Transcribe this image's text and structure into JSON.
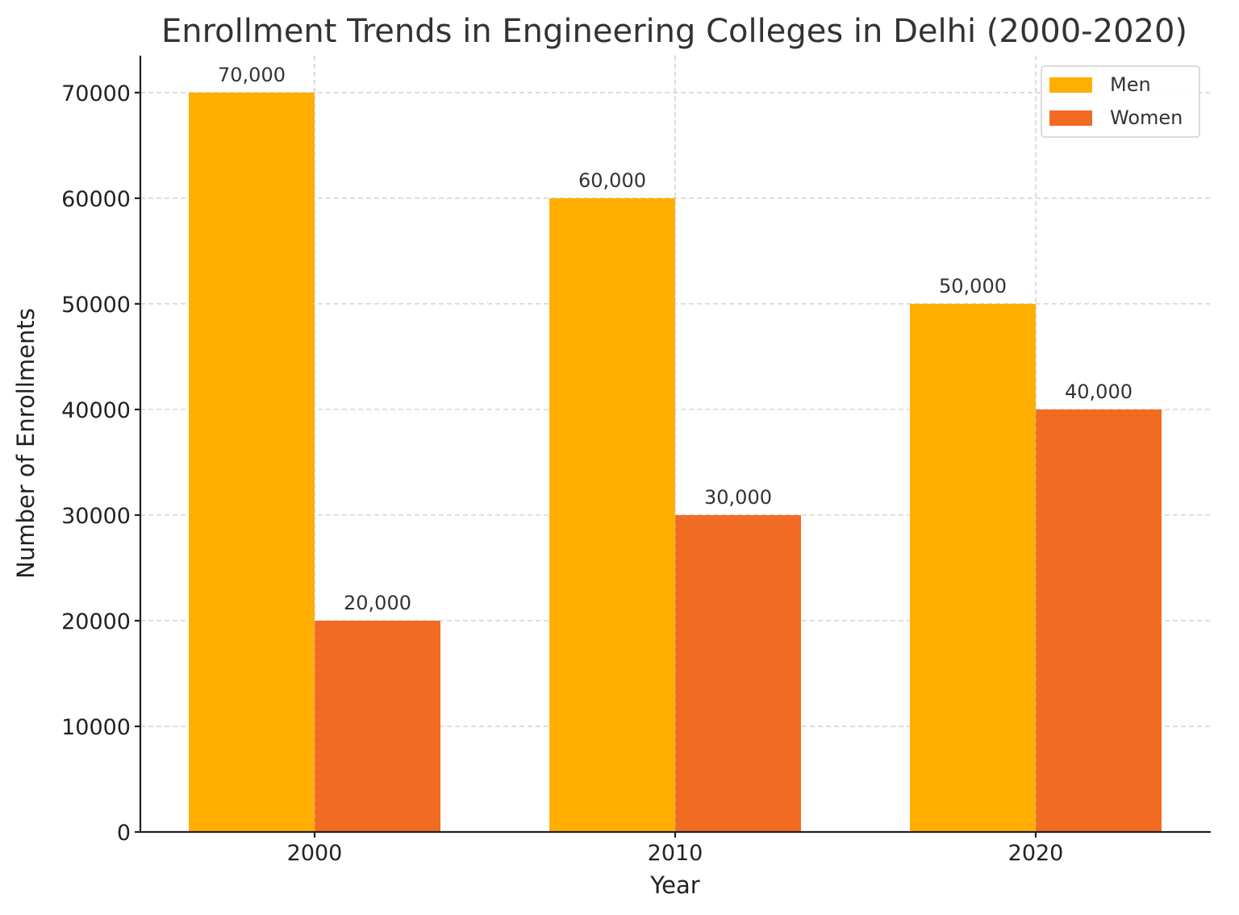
{
  "chart_data": {
    "type": "bar",
    "title": "Enrollment Trends in Engineering Colleges in Delhi (2000-2020)",
    "xlabel": "Year",
    "ylabel": "Number of Enrollments",
    "categories": [
      "2000",
      "2010",
      "2020"
    ],
    "series": [
      {
        "name": "Men",
        "values": [
          70000,
          60000,
          50000
        ],
        "labels": [
          "70,000",
          "60,000",
          "50,000"
        ],
        "color": "#FFAE00"
      },
      {
        "name": "Women",
        "values": [
          20000,
          30000,
          40000
        ],
        "labels": [
          "20,000",
          "30,000",
          "40,000"
        ],
        "color": "#F26B22"
      }
    ],
    "ylim": [
      0,
      73500
    ],
    "yticks": [
      0,
      10000,
      20000,
      30000,
      40000,
      50000,
      60000,
      70000
    ],
    "ytick_labels": [
      "0",
      "10000",
      "20000",
      "30000",
      "40000",
      "50000",
      "60000",
      "70000"
    ],
    "grid": true,
    "legend_position": "top-right"
  }
}
